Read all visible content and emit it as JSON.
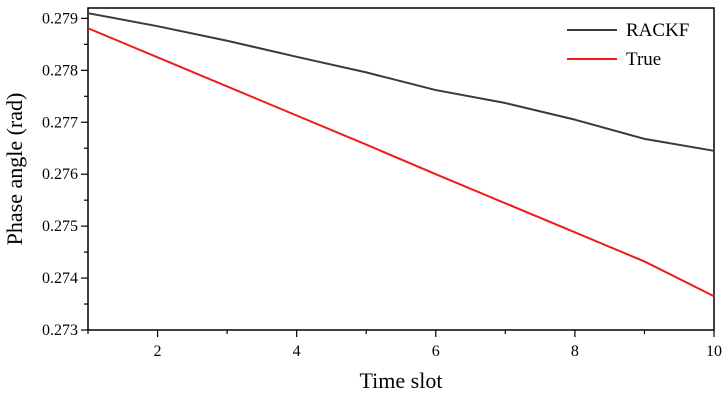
{
  "chart_data": {
    "type": "line",
    "title": "",
    "xlabel": "Time slot",
    "ylabel": "Phase angle (rad)",
    "xlim": [
      1,
      10
    ],
    "ylim": [
      0.273,
      0.2792
    ],
    "x_ticks": [
      2,
      4,
      6,
      8,
      10
    ],
    "x_tick_labels": [
      "2",
      "4",
      "6",
      "8",
      "10"
    ],
    "y_ticks": [
      0.273,
      0.274,
      0.275,
      0.276,
      0.277,
      0.278,
      0.279
    ],
    "y_tick_labels": [
      "0.273",
      "0.274",
      "0.275",
      "0.276",
      "0.277",
      "0.278",
      "0.279"
    ],
    "grid": false,
    "legend_position": "top-right",
    "x": [
      1,
      2,
      3,
      4,
      5,
      6,
      7,
      8,
      9,
      10
    ],
    "series": [
      {
        "name": "RACKF",
        "color": "#3a3a3a",
        "values": [
          0.2791,
          0.27885,
          0.27857,
          0.27826,
          0.27796,
          0.27762,
          0.27737,
          0.27705,
          0.27668,
          0.27645
        ]
      },
      {
        "name": "True",
        "color": "#ee1c1c",
        "values": [
          0.27881,
          0.27825,
          0.27769,
          0.27713,
          0.27657,
          0.276,
          0.27544,
          0.27488,
          0.27432,
          0.27365
        ]
      }
    ]
  }
}
